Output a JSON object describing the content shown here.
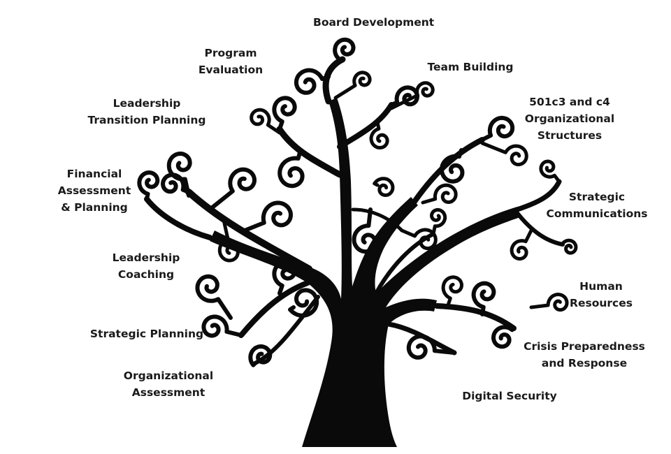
{
  "diagram": {
    "colors": {
      "ink": "#0a0a0a",
      "text": "#1a1a1a",
      "background": "#ffffff"
    },
    "labels": [
      {
        "id": "board-development",
        "lines": [
          "Board Development"
        ]
      },
      {
        "id": "program-evaluation",
        "lines": [
          "Program",
          "Evaluation"
        ]
      },
      {
        "id": "team-building",
        "lines": [
          "Team Building"
        ]
      },
      {
        "id": "leadership-transition-planning",
        "lines": [
          "Leadership",
          "Transition Planning"
        ]
      },
      {
        "id": "organizational-structures",
        "lines": [
          "501c3 and c4",
          "Organizational",
          "Structures"
        ]
      },
      {
        "id": "financial-assessment-planning",
        "lines": [
          "Financial",
          "Assessment",
          "& Planning"
        ]
      },
      {
        "id": "strategic-communications",
        "lines": [
          "Strategic",
          "Communications"
        ]
      },
      {
        "id": "leadership-coaching",
        "lines": [
          "Leadership",
          "Coaching"
        ]
      },
      {
        "id": "human-resources",
        "lines": [
          "Human",
          "Resources"
        ]
      },
      {
        "id": "strategic-planning",
        "lines": [
          "Strategic Planning"
        ]
      },
      {
        "id": "crisis-preparedness-response",
        "lines": [
          "Crisis Preparedness",
          "and Response"
        ]
      },
      {
        "id": "organizational-assessment",
        "lines": [
          "Organizational",
          "Assessment"
        ]
      },
      {
        "id": "digital-security",
        "lines": [
          "Digital Security"
        ]
      }
    ]
  }
}
